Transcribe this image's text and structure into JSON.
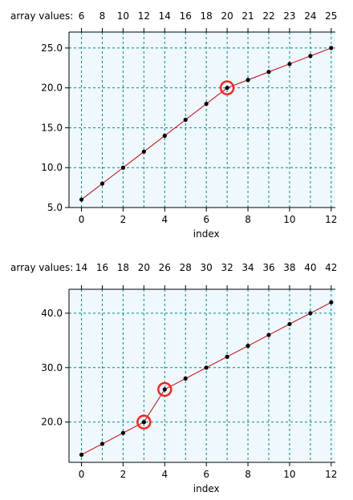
{
  "chart_data": [
    {
      "type": "line",
      "top_label": "array values:",
      "x": [
        0,
        1,
        2,
        3,
        4,
        5,
        6,
        7,
        8,
        9,
        10,
        11,
        12
      ],
      "values": [
        6,
        8,
        10,
        12,
        14,
        16,
        18,
        20,
        21,
        22,
        23,
        24,
        25
      ],
      "top_ticks": [
        "6",
        "8",
        "10",
        "12",
        "14",
        "16",
        "18",
        "20",
        "21",
        "22",
        "23",
        "24",
        "25"
      ],
      "x_ticks": [
        0,
        2,
        4,
        6,
        8,
        10,
        12
      ],
      "x_tick_labels": [
        "0",
        "2",
        "4",
        "6",
        "8",
        "10",
        "12"
      ],
      "y_ticks": [
        5,
        10,
        15,
        20,
        25
      ],
      "y_tick_labels": [
        "5.0",
        "10.0",
        "15.0",
        "20.0",
        "25.0"
      ],
      "xlabel": "index",
      "ylabel": "",
      "xlim": [
        -0.6,
        12.2
      ],
      "ylim": [
        5,
        27
      ],
      "highlighted_indices": [
        7
      ],
      "grid": true,
      "colors": {
        "line": "#cc0000",
        "marker": "#000000",
        "highlight": "#ff2020",
        "grid": "#008b8b",
        "plot_bg": "#eef8fd"
      }
    },
    {
      "type": "line",
      "top_label": "array values:",
      "x": [
        0,
        1,
        2,
        3,
        4,
        5,
        6,
        7,
        8,
        9,
        10,
        11,
        12
      ],
      "values": [
        14,
        16,
        18,
        20,
        26,
        28,
        30,
        32,
        34,
        36,
        38,
        40,
        42
      ],
      "top_ticks": [
        "14",
        "16",
        "18",
        "20",
        "26",
        "28",
        "30",
        "32",
        "34",
        "36",
        "38",
        "40",
        "42"
      ],
      "x_ticks": [
        0,
        2,
        4,
        6,
        8,
        10,
        12
      ],
      "x_tick_labels": [
        "0",
        "2",
        "4",
        "6",
        "8",
        "10",
        "12"
      ],
      "y_ticks": [
        20,
        30,
        40
      ],
      "y_tick_labels": [
        "20.0",
        "30.0",
        "40.0"
      ],
      "xlabel": "index",
      "ylabel": "",
      "xlim": [
        -0.6,
        12.2
      ],
      "ylim": [
        12.6,
        44.4
      ],
      "highlighted_indices": [
        3,
        4
      ],
      "grid": true,
      "colors": {
        "line": "#cc0000",
        "marker": "#000000",
        "highlight": "#ff2020",
        "grid": "#008b8b",
        "plot_bg": "#eef8fd"
      }
    }
  ]
}
